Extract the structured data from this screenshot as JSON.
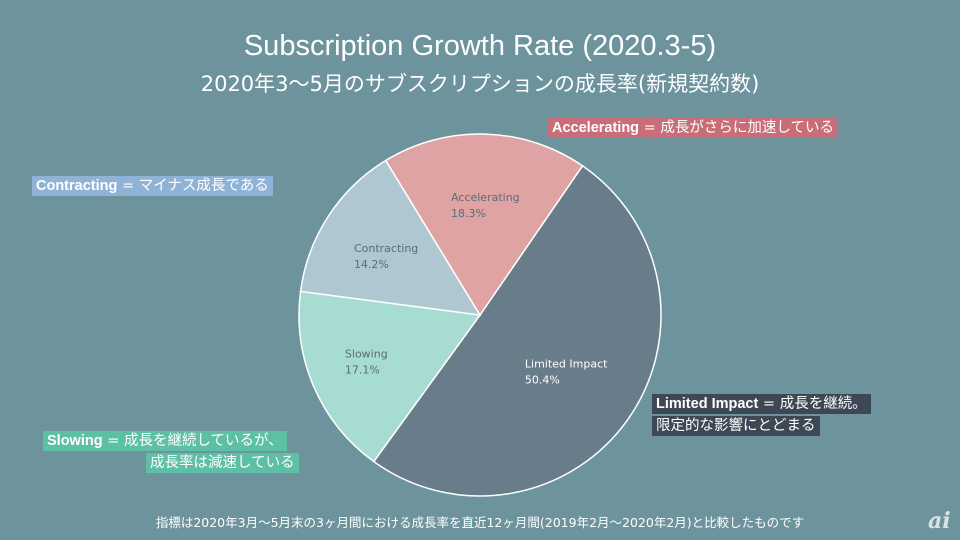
{
  "chart_data": {
    "type": "pie",
    "title": "Subscription Growth Rate (2020.3-5)",
    "subtitle": "2020年3〜5月のサブスクリプションの成長率(新規契約数)",
    "slices": [
      {
        "name": "Limited Impact",
        "label": "50.4%",
        "value": 50.4,
        "color": "#687c8a"
      },
      {
        "name": "Slowing",
        "label": "17.1%",
        "value": 17.1,
        "color": "#a7dcd2"
      },
      {
        "name": "Contracting",
        "label": "14.2%",
        "value": 14.2,
        "color": "#aec7d0"
      },
      {
        "name": "Accelerating",
        "label": "18.3%",
        "value": 18.3,
        "color": "#dfa3a3"
      }
    ],
    "legend": "none"
  },
  "callouts": {
    "accelerating": {
      "term": "Accelerating",
      "text": " = 成長がさらに加速している",
      "color": "#c76e78"
    },
    "contracting": {
      "term": "Contracting",
      "text": " = マイナス成長である",
      "color": "#8fb3d6"
    },
    "limited": {
      "term": "Limited Impact",
      "text": " = 成長を継続。",
      "line2": "限定的な影響にとどまる",
      "color": "#3d4854"
    },
    "slowing": {
      "term": "Slowing",
      "text": " = 成長を継続しているが、",
      "line2": "成長率は減速している",
      "color": "#5dbfa3"
    }
  },
  "footnote": "指標は2020年3月〜5月末の3ヶ月間における成長率を直近12ヶ月間(2019年2月〜2020年2月)と比較したものです",
  "logo": "ai"
}
